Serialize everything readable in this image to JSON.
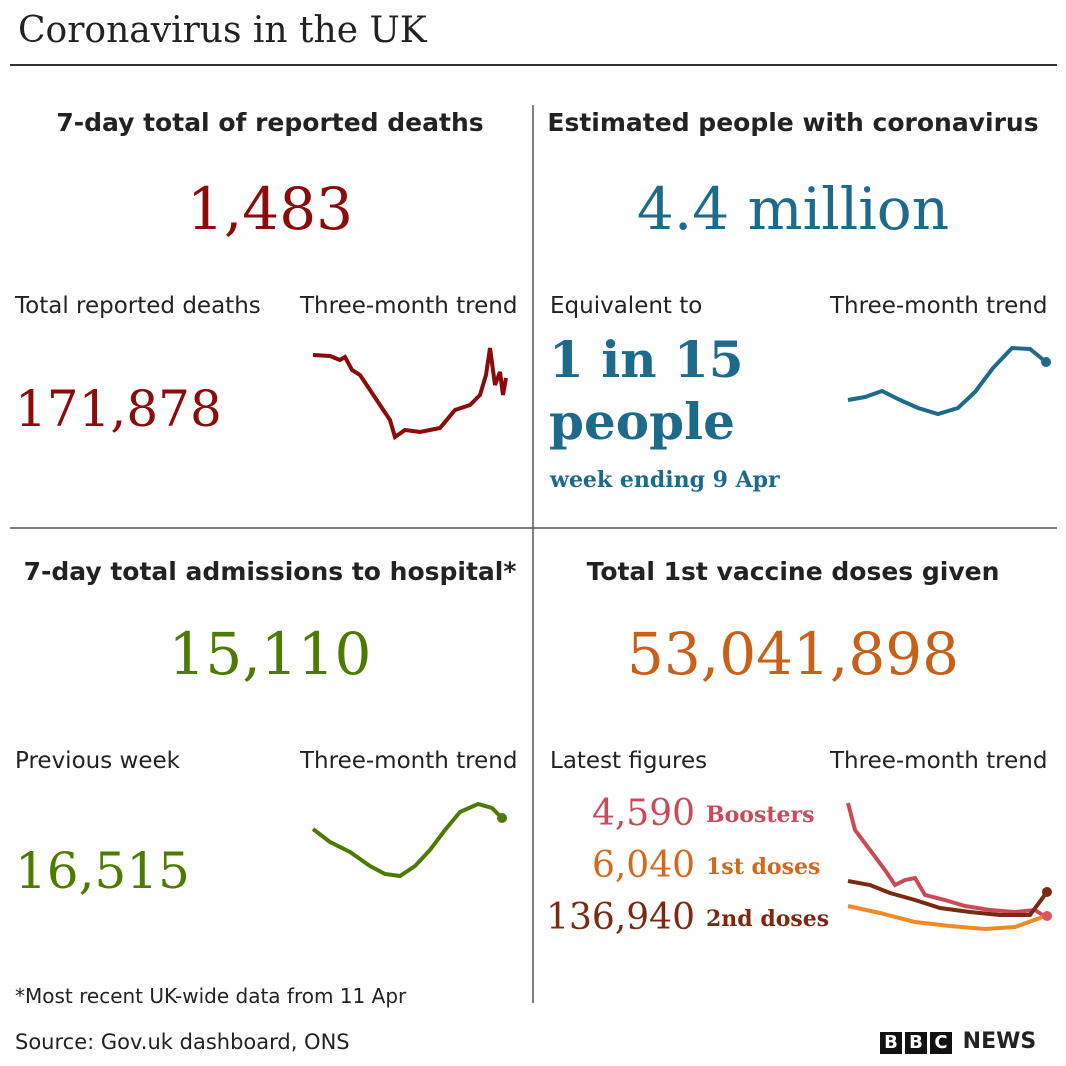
{
  "header": {
    "title": "Coronavirus in the UK"
  },
  "panels": [
    {
      "title": "7-day total of reported deaths",
      "value": "1,483",
      "left_label": "Total reported deaths",
      "trend_label": "Three-month trend",
      "left_value": "171,878"
    },
    {
      "title": "Estimated people with coronavirus",
      "value": "4.4 million",
      "left_label": "Equivalent to",
      "trend_label": "Three-month trend",
      "left_value": [
        "1 in 15",
        "people"
      ],
      "note": "week ending 9 Apr"
    },
    {
      "title": "7-day total admissions to hospital*",
      "value": "15,110",
      "left_label": "Previous week",
      "trend_label": "Three-month trend",
      "left_value": "16,515"
    },
    {
      "title": "Total 1st vaccine doses given",
      "value": "53,041,898",
      "left_label": "Latest figures",
      "trend_label": "Three-month trend",
      "latest": [
        {
          "value": "4,590",
          "label": "Boosters"
        },
        {
          "value": "6,040",
          "label": "1st doses"
        },
        {
          "value": "136,940",
          "label": "2nd doses"
        }
      ]
    }
  ],
  "footnote": "*Most recent UK-wide data from 11 Apr",
  "source": "Source: Gov.uk dashboard, ONS",
  "logo": {
    "bbc": [
      "B",
      "B",
      "C"
    ],
    "news": "NEWS"
  }
}
